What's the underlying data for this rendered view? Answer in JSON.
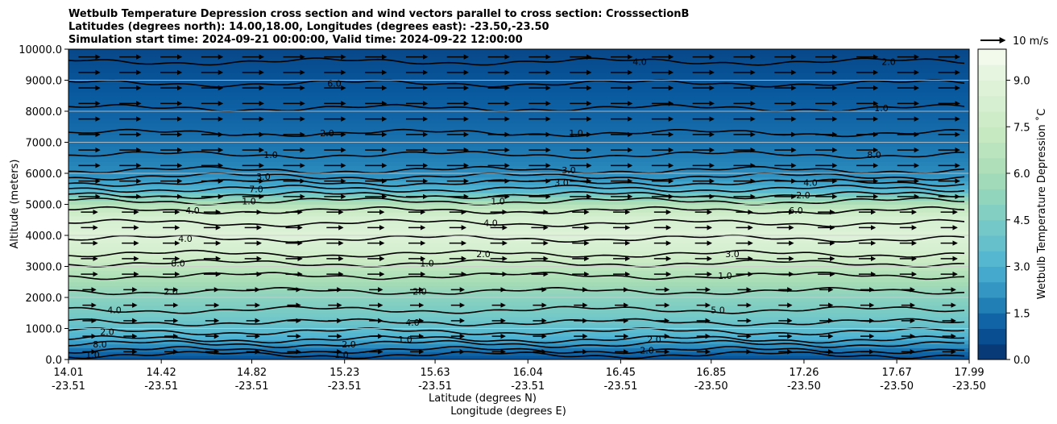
{
  "chart_data": {
    "type": "contour",
    "title_lines": [
      "Wetbulb Temperature Depression cross section and wind vectors parallel to cross section: CrosssectionB",
      "Latitudes (degrees north): 14.00,18.00, Longitudes (degrees east): -23.50,-23.50",
      "Simulation start time: 2024-09-21 00:00:00, Valid time: 2024-09-22 12:00:00"
    ],
    "ylabel": "Altitude (meters)",
    "xlabel_lat": "Latitude (degrees N)",
    "xlabel_lon": "Longitude (degrees E)",
    "ylim": [
      0,
      10000
    ],
    "y_ticks": [
      "0.0",
      "1000.0",
      "2000.0",
      "3000.0",
      "4000.0",
      "5000.0",
      "6000.0",
      "7000.0",
      "8000.0",
      "9000.0",
      "10000.0"
    ],
    "x_lat_ticks": [
      "14.01",
      "14.42",
      "14.82",
      "15.23",
      "15.63",
      "16.04",
      "16.45",
      "16.85",
      "17.26",
      "17.67",
      "17.99"
    ],
    "x_lon_ticks": [
      "-23.51",
      "-23.51",
      "-23.51",
      "-23.51",
      "-23.51",
      "-23.51",
      "-23.51",
      "-23.50",
      "-23.50",
      "-23.50",
      "-23.50"
    ],
    "colorbar": {
      "label": "Wetbulb Temperature Depression ˚C",
      "range": [
        0,
        10
      ],
      "ticks": [
        "0.0",
        "1.5",
        "3.0",
        "4.5",
        "6.0",
        "7.5",
        "9.0"
      ]
    },
    "quiver_key": "10 m/s",
    "profile_altitudes": [
      0,
      300,
      700,
      1200,
      2000,
      2800,
      3400,
      4000,
      4600,
      5000,
      5500,
      6000,
      7000,
      8000,
      9000,
      10000
    ],
    "profile_values": [
      0.8,
      1.5,
      3.0,
      4.0,
      5.0,
      6.5,
      8.0,
      8.8,
      8.2,
      6.5,
      3.0,
      2.0,
      1.5,
      1.2,
      0.9,
      0.6
    ],
    "contour_labels": [
      "1.0",
      "2.0",
      "1.0",
      "2.0",
      "1.0",
      "2.0",
      "3.0",
      "4.0",
      "5.0",
      "6.0",
      "8.0",
      "8.0",
      "8.0",
      "7.0",
      "6.0",
      "4.0",
      "4.0",
      "3.0",
      "2.0",
      "1.0",
      "2.0",
      "1.0",
      "2.0",
      "4.0",
      "3.0",
      "1.0",
      "2.0",
      "1.0",
      "1.0",
      "2.0",
      "3.0",
      "4.0",
      "2.0",
      "4.0",
      "4.0",
      "1.0",
      "2.0",
      "1.0"
    ],
    "wind": {
      "direction": "toward higher latitude",
      "reference_speed_ms": 10
    }
  }
}
